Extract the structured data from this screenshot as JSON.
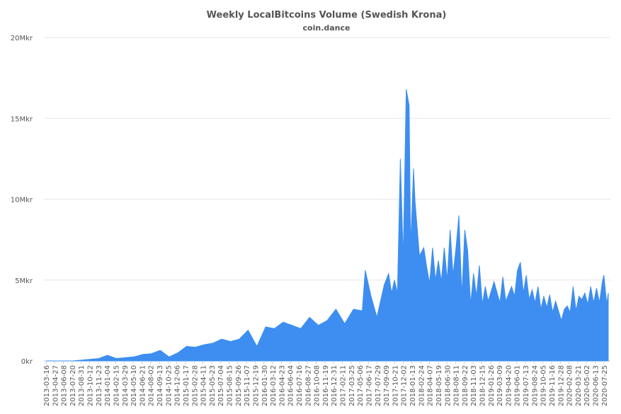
{
  "chart_data": {
    "type": "area",
    "title": "Weekly LocalBitcoins Volume (Swedish Krona)",
    "subtitle": "coin.dance",
    "ylim": [
      0,
      20000000
    ],
    "y_ticks": [
      {
        "value": 0,
        "label": "0kr"
      },
      {
        "value": 5000000,
        "label": "5Mkr"
      },
      {
        "value": 10000000,
        "label": "10Mkr"
      },
      {
        "value": 15000000,
        "label": "15Mkr"
      },
      {
        "value": 20000000,
        "label": "20Mkr"
      }
    ],
    "x_tick_labels": [
      "2013-03-16",
      "2013-04-27",
      "2013-06-08",
      "2013-07-20",
      "2013-08-31",
      "2013-10-12",
      "2013-11-23",
      "2014-01-04",
      "2014-02-15",
      "2014-03-29",
      "2014-05-10",
      "2014-06-21",
      "2014-08-02",
      "2014-09-13",
      "2014-10-25",
      "2014-12-06",
      "2015-01-17",
      "2015-02-28",
      "2015-04-11",
      "2015-05-23",
      "2015-07-04",
      "2015-08-15",
      "2015-09-26",
      "2015-11-07",
      "2015-12-19",
      "2016-01-30",
      "2016-03-12",
      "2016-04-23",
      "2016-06-04",
      "2016-07-16",
      "2016-08-27",
      "2016-10-08",
      "2016-11-19",
      "2016-12-31",
      "2017-02-11",
      "2017-03-25",
      "2017-05-06",
      "2017-06-17",
      "2017-07-29",
      "2017-09-09",
      "2017-10-21",
      "2017-12-02",
      "2018-01-13",
      "2018-02-24",
      "2018-04-07",
      "2018-05-19",
      "2018-06-30",
      "2018-08-11",
      "2018-09-22",
      "2018-11-03",
      "2018-12-15",
      "2019-01-26",
      "2019-03-09",
      "2019-04-20",
      "2019-06-01",
      "2019-07-13",
      "2019-08-24",
      "2019-10-05",
      "2019-11-16",
      "2019-12-28",
      "2020-02-08",
      "2020-03-21",
      "2020-05-02",
      "2020-06-13",
      "2020-07-25"
    ],
    "series": [
      {
        "color": "#3d8ef0",
        "points": [
          [
            "2013-03-16",
            0
          ],
          [
            "2013-04-27",
            0
          ],
          [
            "2013-06-08",
            0
          ],
          [
            "2013-07-20",
            0
          ],
          [
            "2013-08-31",
            50000
          ],
          [
            "2013-10-12",
            100000
          ],
          [
            "2013-11-23",
            150000
          ],
          [
            "2014-01-04",
            350000
          ],
          [
            "2014-02-15",
            150000
          ],
          [
            "2014-03-29",
            200000
          ],
          [
            "2014-05-10",
            250000
          ],
          [
            "2014-06-21",
            400000
          ],
          [
            "2014-08-02",
            450000
          ],
          [
            "2014-09-13",
            650000
          ],
          [
            "2014-10-25",
            250000
          ],
          [
            "2014-12-06",
            500000
          ],
          [
            "2015-01-17",
            900000
          ],
          [
            "2015-02-28",
            850000
          ],
          [
            "2015-04-11",
            1000000
          ],
          [
            "2015-05-23",
            1100000
          ],
          [
            "2015-07-04",
            1350000
          ],
          [
            "2015-08-15",
            1200000
          ],
          [
            "2015-09-26",
            1350000
          ],
          [
            "2015-11-07",
            1900000
          ],
          [
            "2015-12-19",
            900000
          ],
          [
            "2016-01-30",
            2100000
          ],
          [
            "2016-03-12",
            2000000
          ],
          [
            "2016-04-23",
            2400000
          ],
          [
            "2016-06-04",
            2200000
          ],
          [
            "2016-07-16",
            2000000
          ],
          [
            "2016-08-27",
            2700000
          ],
          [
            "2016-10-08",
            2200000
          ],
          [
            "2016-11-19",
            2500000
          ],
          [
            "2016-12-31",
            3200000
          ],
          [
            "2017-02-11",
            2300000
          ],
          [
            "2017-03-25",
            3200000
          ],
          [
            "2017-05-06",
            3100000
          ],
          [
            "2017-05-20",
            5600000
          ],
          [
            "2017-06-17",
            4000000
          ],
          [
            "2017-07-15",
            2700000
          ],
          [
            "2017-07-29",
            3500000
          ],
          [
            "2017-08-19",
            4700000
          ],
          [
            "2017-09-09",
            5400000
          ],
          [
            "2017-09-23",
            4200000
          ],
          [
            "2017-10-07",
            5000000
          ],
          [
            "2017-10-21",
            4200000
          ],
          [
            "2017-11-04",
            12500000
          ],
          [
            "2017-11-18",
            6300000
          ],
          [
            "2017-12-02",
            16800000
          ],
          [
            "2017-12-16",
            15800000
          ],
          [
            "2017-12-23",
            7000000
          ],
          [
            "2018-01-06",
            11900000
          ],
          [
            "2018-01-13",
            9900000
          ],
          [
            "2018-02-03",
            6500000
          ],
          [
            "2018-02-24",
            7000000
          ],
          [
            "2018-03-10",
            5800000
          ],
          [
            "2018-03-24",
            4800000
          ],
          [
            "2018-04-07",
            7000000
          ],
          [
            "2018-04-21",
            5000000
          ],
          [
            "2018-05-05",
            6200000
          ],
          [
            "2018-05-19",
            4900000
          ],
          [
            "2018-06-02",
            7000000
          ],
          [
            "2018-06-16",
            5000000
          ],
          [
            "2018-06-30",
            8100000
          ],
          [
            "2018-07-14",
            5300000
          ],
          [
            "2018-07-28",
            7000000
          ],
          [
            "2018-08-11",
            9000000
          ],
          [
            "2018-08-25",
            4000000
          ],
          [
            "2018-09-08",
            8100000
          ],
          [
            "2018-09-22",
            6800000
          ],
          [
            "2018-10-06",
            3500000
          ],
          [
            "2018-10-20",
            5400000
          ],
          [
            "2018-11-03",
            4000000
          ],
          [
            "2018-11-17",
            5900000
          ],
          [
            "2018-12-01",
            3500000
          ],
          [
            "2018-12-15",
            4600000
          ],
          [
            "2018-12-29",
            3700000
          ],
          [
            "2019-01-26",
            4900000
          ],
          [
            "2019-02-23",
            3600000
          ],
          [
            "2019-03-09",
            5200000
          ],
          [
            "2019-03-23",
            3700000
          ],
          [
            "2019-04-20",
            4600000
          ],
          [
            "2019-05-04",
            4000000
          ],
          [
            "2019-05-18",
            5600000
          ],
          [
            "2019-06-01",
            6100000
          ],
          [
            "2019-06-15",
            4200000
          ],
          [
            "2019-06-29",
            5300000
          ],
          [
            "2019-07-13",
            3800000
          ],
          [
            "2019-07-27",
            4400000
          ],
          [
            "2019-08-10",
            3600000
          ],
          [
            "2019-08-24",
            4600000
          ],
          [
            "2019-09-07",
            3200000
          ],
          [
            "2019-09-21",
            4000000
          ],
          [
            "2019-10-05",
            3300000
          ],
          [
            "2019-10-19",
            4100000
          ],
          [
            "2019-11-02",
            3000000
          ],
          [
            "2019-11-16",
            3700000
          ],
          [
            "2019-11-30",
            3100000
          ],
          [
            "2019-12-14",
            2500000
          ],
          [
            "2019-12-28",
            3200000
          ],
          [
            "2020-01-11",
            3400000
          ],
          [
            "2020-01-25",
            3000000
          ],
          [
            "2020-02-08",
            4600000
          ],
          [
            "2020-02-22",
            3100000
          ],
          [
            "2020-03-07",
            4000000
          ],
          [
            "2020-03-21",
            3800000
          ],
          [
            "2020-04-04",
            4200000
          ],
          [
            "2020-04-18",
            3500000
          ],
          [
            "2020-05-02",
            4600000
          ],
          [
            "2020-05-16",
            3600000
          ],
          [
            "2020-05-30",
            4500000
          ],
          [
            "2020-06-13",
            3600000
          ],
          [
            "2020-06-27",
            4900000
          ],
          [
            "2020-07-04",
            5300000
          ],
          [
            "2020-07-18",
            3500000
          ],
          [
            "2020-07-25",
            4200000
          ]
        ]
      }
    ],
    "grid": true,
    "legend": "none"
  }
}
